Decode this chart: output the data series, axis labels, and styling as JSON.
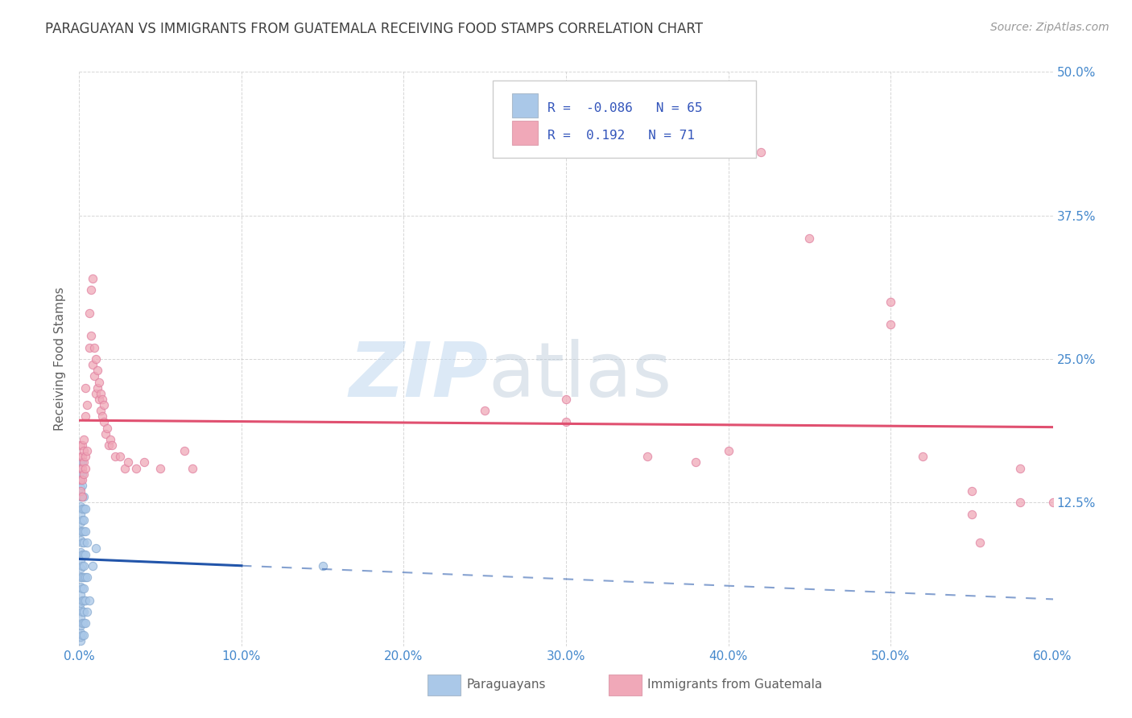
{
  "title": "PARAGUAYAN VS IMMIGRANTS FROM GUATEMALA RECEIVING FOOD STAMPS CORRELATION CHART",
  "source": "Source: ZipAtlas.com",
  "ylabel": "Receiving Food Stamps",
  "xlabel_blue": "Paraguayans",
  "xlabel_pink": "Immigrants from Guatemala",
  "watermark_zip": "ZIP",
  "watermark_atlas": "atlas",
  "xlim": [
    0.0,
    0.6
  ],
  "ylim": [
    0.0,
    0.5
  ],
  "R_blue": -0.086,
  "N_blue": 65,
  "R_pink": 0.192,
  "N_pink": 71,
  "blue_color": "#aac8e8",
  "pink_color": "#f0a8b8",
  "blue_edge_color": "#88aad0",
  "pink_edge_color": "#e080a0",
  "blue_line_color": "#2255aa",
  "pink_line_color": "#e05070",
  "blue_scatter": [
    [
      0.001,
      0.005
    ],
    [
      0.001,
      0.008
    ],
    [
      0.001,
      0.012
    ],
    [
      0.001,
      0.018
    ],
    [
      0.001,
      0.025
    ],
    [
      0.001,
      0.032
    ],
    [
      0.001,
      0.038
    ],
    [
      0.001,
      0.045
    ],
    [
      0.001,
      0.052
    ],
    [
      0.001,
      0.06
    ],
    [
      0.001,
      0.068
    ],
    [
      0.001,
      0.075
    ],
    [
      0.001,
      0.082
    ],
    [
      0.001,
      0.092
    ],
    [
      0.001,
      0.1
    ],
    [
      0.001,
      0.108
    ],
    [
      0.001,
      0.115
    ],
    [
      0.001,
      0.122
    ],
    [
      0.001,
      0.13
    ],
    [
      0.001,
      0.138
    ],
    [
      0.001,
      0.145
    ],
    [
      0.001,
      0.152
    ],
    [
      0.001,
      0.16
    ],
    [
      0.002,
      0.01
    ],
    [
      0.002,
      0.02
    ],
    [
      0.002,
      0.03
    ],
    [
      0.002,
      0.04
    ],
    [
      0.002,
      0.05
    ],
    [
      0.002,
      0.06
    ],
    [
      0.002,
      0.07
    ],
    [
      0.002,
      0.08
    ],
    [
      0.002,
      0.09
    ],
    [
      0.002,
      0.1
    ],
    [
      0.002,
      0.11
    ],
    [
      0.002,
      0.12
    ],
    [
      0.002,
      0.13
    ],
    [
      0.002,
      0.14
    ],
    [
      0.002,
      0.15
    ],
    [
      0.002,
      0.16
    ],
    [
      0.003,
      0.01
    ],
    [
      0.003,
      0.02
    ],
    [
      0.003,
      0.03
    ],
    [
      0.003,
      0.04
    ],
    [
      0.003,
      0.05
    ],
    [
      0.003,
      0.06
    ],
    [
      0.003,
      0.07
    ],
    [
      0.003,
      0.08
    ],
    [
      0.003,
      0.09
    ],
    [
      0.003,
      0.1
    ],
    [
      0.003,
      0.11
    ],
    [
      0.003,
      0.12
    ],
    [
      0.003,
      0.13
    ],
    [
      0.004,
      0.02
    ],
    [
      0.004,
      0.04
    ],
    [
      0.004,
      0.06
    ],
    [
      0.004,
      0.08
    ],
    [
      0.004,
      0.1
    ],
    [
      0.004,
      0.12
    ],
    [
      0.005,
      0.03
    ],
    [
      0.005,
      0.06
    ],
    [
      0.005,
      0.09
    ],
    [
      0.006,
      0.04
    ],
    [
      0.008,
      0.07
    ],
    [
      0.01,
      0.085
    ],
    [
      0.15,
      0.07
    ]
  ],
  "pink_scatter": [
    [
      0.001,
      0.135
    ],
    [
      0.001,
      0.145
    ],
    [
      0.001,
      0.155
    ],
    [
      0.001,
      0.165
    ],
    [
      0.001,
      0.175
    ],
    [
      0.002,
      0.13
    ],
    [
      0.002,
      0.145
    ],
    [
      0.002,
      0.155
    ],
    [
      0.002,
      0.165
    ],
    [
      0.002,
      0.175
    ],
    [
      0.003,
      0.15
    ],
    [
      0.003,
      0.16
    ],
    [
      0.003,
      0.17
    ],
    [
      0.003,
      0.18
    ],
    [
      0.004,
      0.155
    ],
    [
      0.004,
      0.165
    ],
    [
      0.004,
      0.2
    ],
    [
      0.004,
      0.225
    ],
    [
      0.005,
      0.17
    ],
    [
      0.005,
      0.21
    ],
    [
      0.006,
      0.26
    ],
    [
      0.006,
      0.29
    ],
    [
      0.007,
      0.27
    ],
    [
      0.007,
      0.31
    ],
    [
      0.008,
      0.245
    ],
    [
      0.008,
      0.32
    ],
    [
      0.009,
      0.235
    ],
    [
      0.009,
      0.26
    ],
    [
      0.01,
      0.22
    ],
    [
      0.01,
      0.25
    ],
    [
      0.011,
      0.225
    ],
    [
      0.011,
      0.24
    ],
    [
      0.012,
      0.215
    ],
    [
      0.012,
      0.23
    ],
    [
      0.013,
      0.205
    ],
    [
      0.013,
      0.22
    ],
    [
      0.014,
      0.2
    ],
    [
      0.014,
      0.215
    ],
    [
      0.015,
      0.195
    ],
    [
      0.015,
      0.21
    ],
    [
      0.016,
      0.185
    ],
    [
      0.017,
      0.19
    ],
    [
      0.018,
      0.175
    ],
    [
      0.019,
      0.18
    ],
    [
      0.02,
      0.175
    ],
    [
      0.022,
      0.165
    ],
    [
      0.025,
      0.165
    ],
    [
      0.028,
      0.155
    ],
    [
      0.03,
      0.16
    ],
    [
      0.035,
      0.155
    ],
    [
      0.04,
      0.16
    ],
    [
      0.05,
      0.155
    ],
    [
      0.065,
      0.17
    ],
    [
      0.07,
      0.155
    ],
    [
      0.25,
      0.205
    ],
    [
      0.3,
      0.195
    ],
    [
      0.3,
      0.215
    ],
    [
      0.35,
      0.165
    ],
    [
      0.38,
      0.16
    ],
    [
      0.4,
      0.17
    ],
    [
      0.42,
      0.43
    ],
    [
      0.45,
      0.355
    ],
    [
      0.5,
      0.3
    ],
    [
      0.5,
      0.28
    ],
    [
      0.52,
      0.165
    ],
    [
      0.55,
      0.135
    ],
    [
      0.55,
      0.115
    ],
    [
      0.58,
      0.155
    ],
    [
      0.58,
      0.125
    ],
    [
      0.555,
      0.09
    ],
    [
      0.6,
      0.125
    ]
  ],
  "background_color": "#ffffff",
  "grid_color": "#cccccc",
  "title_color": "#404040",
  "axis_label_color": "#606060",
  "tick_color": "#4488cc",
  "legend_text_color": "#3355bb"
}
